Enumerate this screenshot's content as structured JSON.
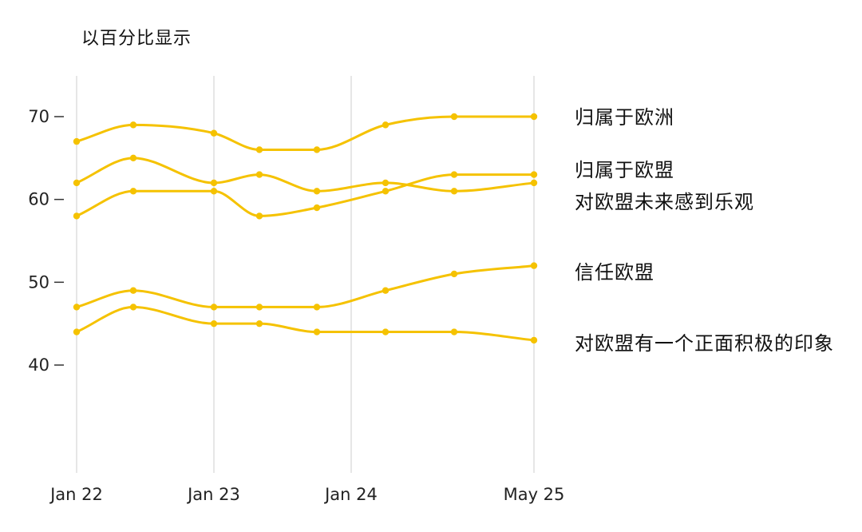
{
  "chart_data": {
    "type": "line",
    "unit_label": "以百分比显示",
    "x_ticks": [
      "Jan 22",
      "Jan 23",
      "Jan 24",
      "May 25"
    ],
    "y_ticks": [
      70,
      60,
      50,
      40
    ],
    "ylim": [
      28,
      75
    ],
    "grid": "vertical",
    "line_color": "#F5C200",
    "series": [
      {
        "name": "归属于欧洲",
        "values": [
          67,
          69,
          68,
          66,
          66,
          69,
          70,
          70
        ]
      },
      {
        "name": "归属于欧盟",
        "values": [
          62,
          65,
          62,
          63,
          61,
          62,
          61,
          62
        ]
      },
      {
        "name": "对欧盟未来感到乐观",
        "values": [
          58,
          61,
          61,
          58,
          59,
          61,
          63,
          63
        ]
      },
      {
        "name": "信任欧盟",
        "values": [
          47,
          49,
          47,
          47,
          47,
          49,
          51,
          52
        ]
      },
      {
        "name": "对欧盟有一个正面积极的印象",
        "values": [
          44,
          47,
          45,
          45,
          44,
          44,
          44,
          43
        ]
      }
    ]
  }
}
